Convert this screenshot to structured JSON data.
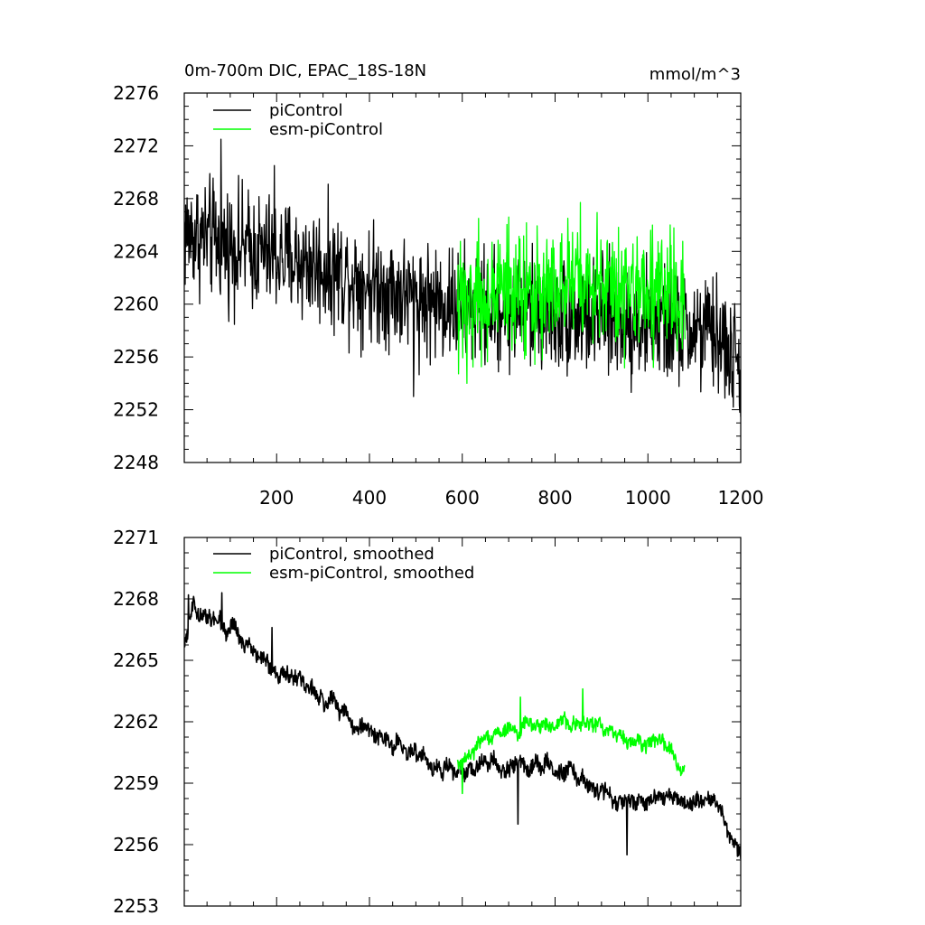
{
  "figure": {
    "title": "0m-700m DIC, EPAC_18S-18N",
    "units": "mmol/m^3"
  },
  "chart_data": [
    {
      "type": "line",
      "xlim": [
        1,
        1200
      ],
      "ylim": [
        2248,
        2276
      ],
      "xticks": [
        200,
        400,
        600,
        800,
        1000,
        1200
      ],
      "xtick_labels": [
        "200",
        "400",
        "600",
        "800",
        "1000",
        "1200"
      ],
      "yticks": [
        2248,
        2252,
        2256,
        2260,
        2264,
        2268,
        2272,
        2276
      ],
      "ytick_labels": [
        "2248",
        "2252",
        "2256",
        "2260",
        "2264",
        "2268",
        "2272",
        "2276"
      ],
      "legend_position": "top-left",
      "series": [
        {
          "name": "piControl",
          "color": "#000000",
          "x_range": [
            1,
            1200
          ],
          "n_points": 1200,
          "trend": [
            [
              1,
              2265.5
            ],
            [
              100,
              2264.5
            ],
            [
              300,
              2262.8
            ],
            [
              500,
              2260.5
            ],
            [
              600,
              2259.8
            ],
            [
              800,
              2259.3
            ],
            [
              1000,
              2258.6
            ],
            [
              1150,
              2257.6
            ],
            [
              1200,
              2255.0
            ]
          ],
          "noise_amplitude": 2.2,
          "extremes": [
            [
              3,
              2261.5
            ],
            [
              80,
              2272.5
            ],
            [
              195,
              2270.5
            ],
            [
              495,
              2253.0
            ],
            [
              1198,
              2251.8
            ]
          ]
        },
        {
          "name": "esm-piControl",
          "color": "#00ff00",
          "x_range": [
            590,
            1080
          ],
          "n_points": 490,
          "trend": [
            [
              590,
              2260.0
            ],
            [
              700,
              2261.0
            ],
            [
              850,
              2261.5
            ],
            [
              1000,
              2261.0
            ],
            [
              1080,
              2260.2
            ]
          ],
          "noise_amplitude": 2.3,
          "extremes": [
            [
              610,
              2254.0
            ],
            [
              635,
              2266.5
            ],
            [
              855,
              2267.7
            ],
            [
              1010,
              2266.0
            ]
          ]
        }
      ]
    },
    {
      "type": "line",
      "xlim": [
        1,
        1200
      ],
      "ylim": [
        2253,
        2271
      ],
      "xticks": [
        200,
        400,
        600,
        800,
        1000,
        1200
      ],
      "xtick_labels": [],
      "yticks": [
        2253,
        2256,
        2259,
        2262,
        2265,
        2268,
        2271
      ],
      "ytick_labels": [
        "2253",
        "2256",
        "2259",
        "2262",
        "2265",
        "2268",
        "2271"
      ],
      "legend_position": "top-left",
      "series": [
        {
          "name": "piControl, smoothed",
          "color": "#000000",
          "x_range": [
            1,
            1200
          ],
          "n_points": 1200,
          "trend": [
            [
              1,
              2265.0
            ],
            [
              15,
              2267.5
            ],
            [
              80,
              2267.0
            ],
            [
              200,
              2264.5
            ],
            [
              300,
              2263.0
            ],
            [
              450,
              2261.0
            ],
            [
              550,
              2259.5
            ],
            [
              650,
              2260.0
            ],
            [
              800,
              2259.8
            ],
            [
              950,
              2258.0
            ],
            [
              1050,
              2258.3
            ],
            [
              1150,
              2258.0
            ],
            [
              1200,
              2255.3
            ]
          ],
          "noise_amplitude": 0.7,
          "extremes": [
            [
              10,
              2268.2
            ],
            [
              82,
              2268.3
            ],
            [
              190,
              2266.6
            ],
            [
              720,
              2257.0
            ],
            [
              955,
              2255.5
            ],
            [
              1200,
              2255.3
            ]
          ]
        },
        {
          "name": "esm-piControl, smoothed",
          "color": "#00ff00",
          "x_range": [
            590,
            1080
          ],
          "n_points": 490,
          "trend": [
            [
              590,
              2259.8
            ],
            [
              650,
              2261.0
            ],
            [
              720,
              2261.8
            ],
            [
              850,
              2262.0
            ],
            [
              950,
              2261.2
            ],
            [
              1050,
              2260.8
            ],
            [
              1080,
              2259.3
            ]
          ],
          "noise_amplitude": 0.6,
          "extremes": [
            [
              600,
              2258.5
            ],
            [
              725,
              2263.2
            ],
            [
              860,
              2263.6
            ],
            [
              1070,
              2259.8
            ]
          ]
        }
      ]
    }
  ]
}
